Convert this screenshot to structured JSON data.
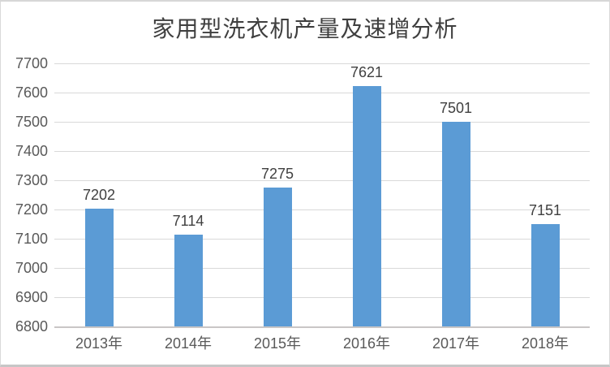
{
  "chart": {
    "title": "家用型洗衣机产量及速增分析",
    "colors": {
      "bar": "#5B9BD5",
      "gridline": "#d9d9d9",
      "axis_line": "#c9c6c6",
      "title_text": "#3f3f3f",
      "tick_text": "#595959",
      "value_text": "#404040",
      "background": "#ffffff",
      "frame_border": "#c6c6c6"
    }
  },
  "chart_data": {
    "type": "bar",
    "title": "家用型洗衣机产量及速增分析",
    "categories": [
      "2013年",
      "2014年",
      "2015年",
      "2016年",
      "2017年",
      "2018年"
    ],
    "values": [
      7202,
      7114,
      7275,
      7621,
      7501,
      7151
    ],
    "data_labels": [
      "7202",
      "7114",
      "7275",
      "7621",
      "7501",
      "7151"
    ],
    "xlabel": "",
    "ylabel": "",
    "ylim": [
      6800,
      7700
    ],
    "ytick_step": 100,
    "yticks": [
      6800,
      6900,
      7000,
      7100,
      7200,
      7300,
      7400,
      7500,
      7600,
      7700
    ],
    "grid": true,
    "legend_position": "none"
  }
}
